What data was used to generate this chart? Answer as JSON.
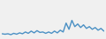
{
  "values": [
    3,
    2.5,
    3,
    2,
    3.5,
    2.5,
    4,
    3,
    5,
    3.5,
    6,
    4,
    6.5,
    4.5,
    5,
    3.5,
    5,
    3.5,
    6,
    4,
    7,
    5,
    15,
    8,
    18,
    11,
    14,
    10,
    13,
    9,
    11,
    8,
    10,
    7,
    9,
    6
  ],
  "line_color": "#4a90c4",
  "background_color": "#f0f0f0",
  "linewidth": 1.0
}
